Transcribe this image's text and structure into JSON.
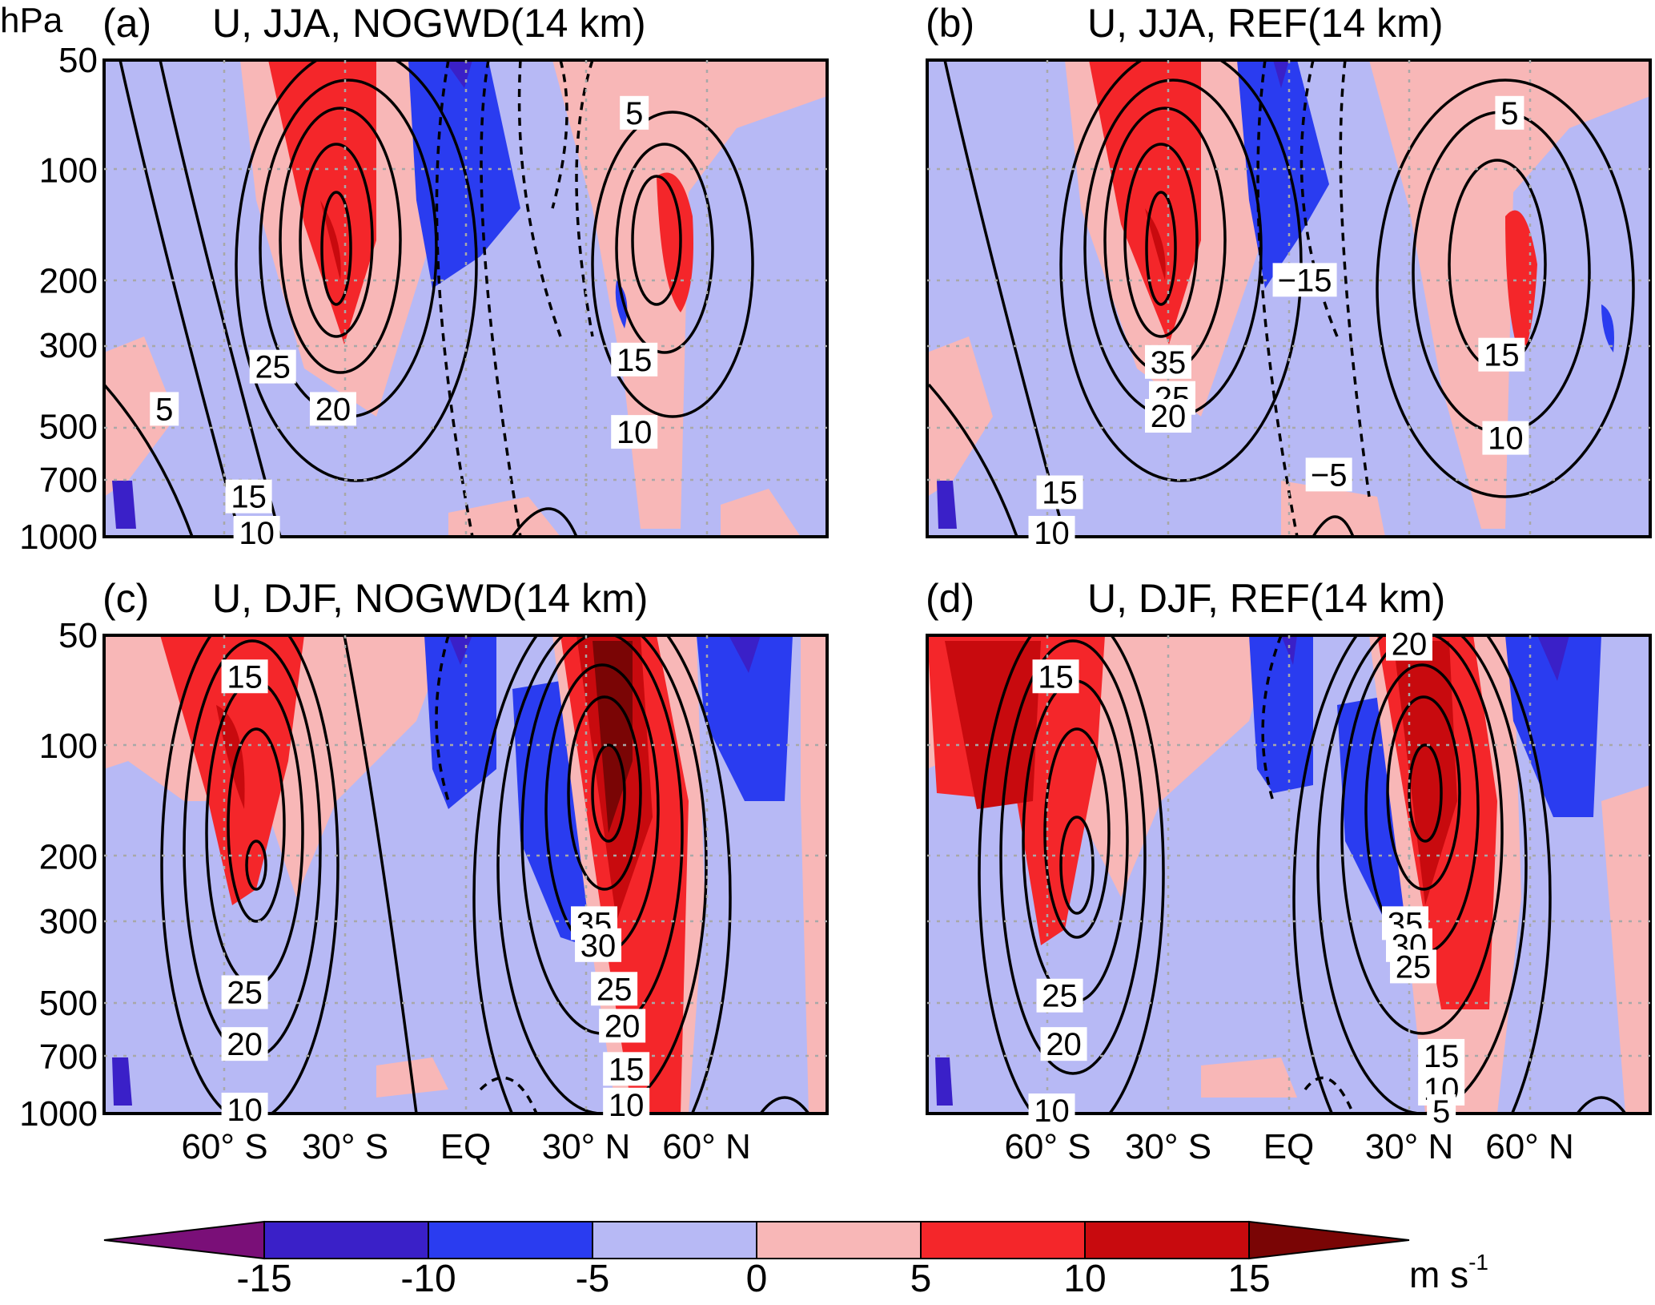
{
  "figure": {
    "unit_label": "m s",
    "unit_exponent": "-1",
    "pressure_unit": "hPa"
  },
  "chart_data": [
    {
      "type": "heatmap",
      "panel": "(a)",
      "title": "U, JJA, NOGWD(14 km)",
      "description_of_fields": "shading: U difference; contours: U climatology",
      "xlabels": [
        "60° S",
        "30° S",
        "EQ",
        "30° N",
        "60° N"
      ],
      "x_values_lat": [
        -60,
        -30,
        0,
        30,
        60
      ],
      "x_range_lat": [
        -90,
        90
      ],
      "ylabels": [
        "50",
        "100",
        "200",
        "300",
        "500",
        "700",
        "1000"
      ],
      "y_values_hpa": [
        50,
        100,
        200,
        300,
        500,
        700,
        1000
      ],
      "y_scale": "log-pressure",
      "grid": true,
      "contour_labels": [
        {
          "text": "5",
          "lat": -75,
          "p": 450
        },
        {
          "text": "25",
          "lat": -48,
          "p": 345
        },
        {
          "text": "20",
          "lat": -33,
          "p": 450
        },
        {
          "text": "15",
          "lat": -54,
          "p": 780
        },
        {
          "text": "10",
          "lat": -52,
          "p": 980
        },
        {
          "text": "5",
          "lat": 42,
          "p": 70
        },
        {
          "text": "15",
          "lat": 42,
          "p": 330
        },
        {
          "text": "10",
          "lat": 42,
          "p": 520
        }
      ]
    },
    {
      "type": "heatmap",
      "panel": "(b)",
      "title": "U, JJA, REF(14 km)",
      "xlabels": [
        "60° S",
        "30° S",
        "EQ",
        "30° N",
        "60° N"
      ],
      "x_values_lat": [
        -60,
        -30,
        0,
        30,
        60
      ],
      "ylabels": [
        "50",
        "100",
        "200",
        "300",
        "500",
        "700",
        "1000"
      ],
      "y_values_hpa": [
        50,
        100,
        200,
        300,
        500,
        700,
        1000
      ],
      "contour_labels": [
        {
          "text": "5",
          "lat": 55,
          "p": 70
        },
        {
          "text": "−15",
          "lat": 4,
          "p": 200
        },
        {
          "text": "35",
          "lat": -30,
          "p": 335
        },
        {
          "text": "25",
          "lat": -29,
          "p": 420
        },
        {
          "text": "20",
          "lat": -30,
          "p": 470
        },
        {
          "text": "15",
          "lat": -57,
          "p": 760
        },
        {
          "text": "10",
          "lat": -59,
          "p": 980
        },
        {
          "text": "−5",
          "lat": 10,
          "p": 680
        },
        {
          "text": "15",
          "lat": 53,
          "p": 320
        },
        {
          "text": "10",
          "lat": 54,
          "p": 540
        }
      ]
    },
    {
      "type": "heatmap",
      "panel": "(c)",
      "title": "U, DJF, NOGWD(14 km)",
      "xlabels": [
        "60° S",
        "30° S",
        "EQ",
        "30° N",
        "60° N"
      ],
      "x_values_lat": [
        -60,
        -30,
        0,
        30,
        60
      ],
      "ylabels": [
        "50",
        "100",
        "200",
        "300",
        "500",
        "700",
        "1000"
      ],
      "y_values_hpa": [
        50,
        100,
        200,
        300,
        500,
        700,
        1000
      ],
      "contour_labels": [
        {
          "text": "15",
          "lat": -55,
          "p": 65
        },
        {
          "text": "25",
          "lat": -55,
          "p": 470
        },
        {
          "text": "20",
          "lat": -55,
          "p": 650
        },
        {
          "text": "10",
          "lat": -55,
          "p": 980
        },
        {
          "text": "35",
          "lat": 32,
          "p": 305
        },
        {
          "text": "30",
          "lat": 33,
          "p": 350
        },
        {
          "text": "25",
          "lat": 37,
          "p": 460
        },
        {
          "text": "20",
          "lat": 39,
          "p": 580
        },
        {
          "text": "15",
          "lat": 40,
          "p": 760
        },
        {
          "text": "10",
          "lat": 40,
          "p": 950
        }
      ]
    },
    {
      "type": "heatmap",
      "panel": "(d)",
      "title": "U, DJF, REF(14 km)",
      "xlabels": [
        "60° S",
        "30° S",
        "EQ",
        "30° N",
        "60° N"
      ],
      "x_values_lat": [
        -60,
        -30,
        0,
        30,
        60
      ],
      "ylabels": [
        "50",
        "100",
        "200",
        "300",
        "500",
        "700",
        "1000"
      ],
      "y_values_hpa": [
        50,
        100,
        200,
        300,
        500,
        700,
        1000
      ],
      "contour_labels": [
        {
          "text": "20",
          "lat": 30,
          "p": 53
        },
        {
          "text": "15",
          "lat": -58,
          "p": 65
        },
        {
          "text": "35",
          "lat": 29,
          "p": 305
        },
        {
          "text": "30",
          "lat": 30,
          "p": 350
        },
        {
          "text": "25",
          "lat": 31,
          "p": 400
        },
        {
          "text": "25",
          "lat": -57,
          "p": 480
        },
        {
          "text": "20",
          "lat": -56,
          "p": 650
        },
        {
          "text": "15",
          "lat": 38,
          "p": 700
        },
        {
          "text": "10",
          "lat": 38,
          "p": 860
        },
        {
          "text": "5",
          "lat": 38,
          "p": 990
        },
        {
          "text": "10",
          "lat": -59,
          "p": 985
        }
      ]
    },
    {
      "type": "colorbar",
      "tick_labels": [
        "-15",
        "-10",
        "-5",
        "0",
        "5",
        "10",
        "15"
      ],
      "tick_values": [
        -15,
        -10,
        -5,
        0,
        5,
        10,
        15
      ],
      "colors": [
        "#7a0f78",
        "#3a20c8",
        "#2a3cf0",
        "#b7b9f5",
        "#f8b7b7",
        "#f4262a",
        "#c80a0e",
        "#7a0505"
      ],
      "extend": "both"
    }
  ]
}
